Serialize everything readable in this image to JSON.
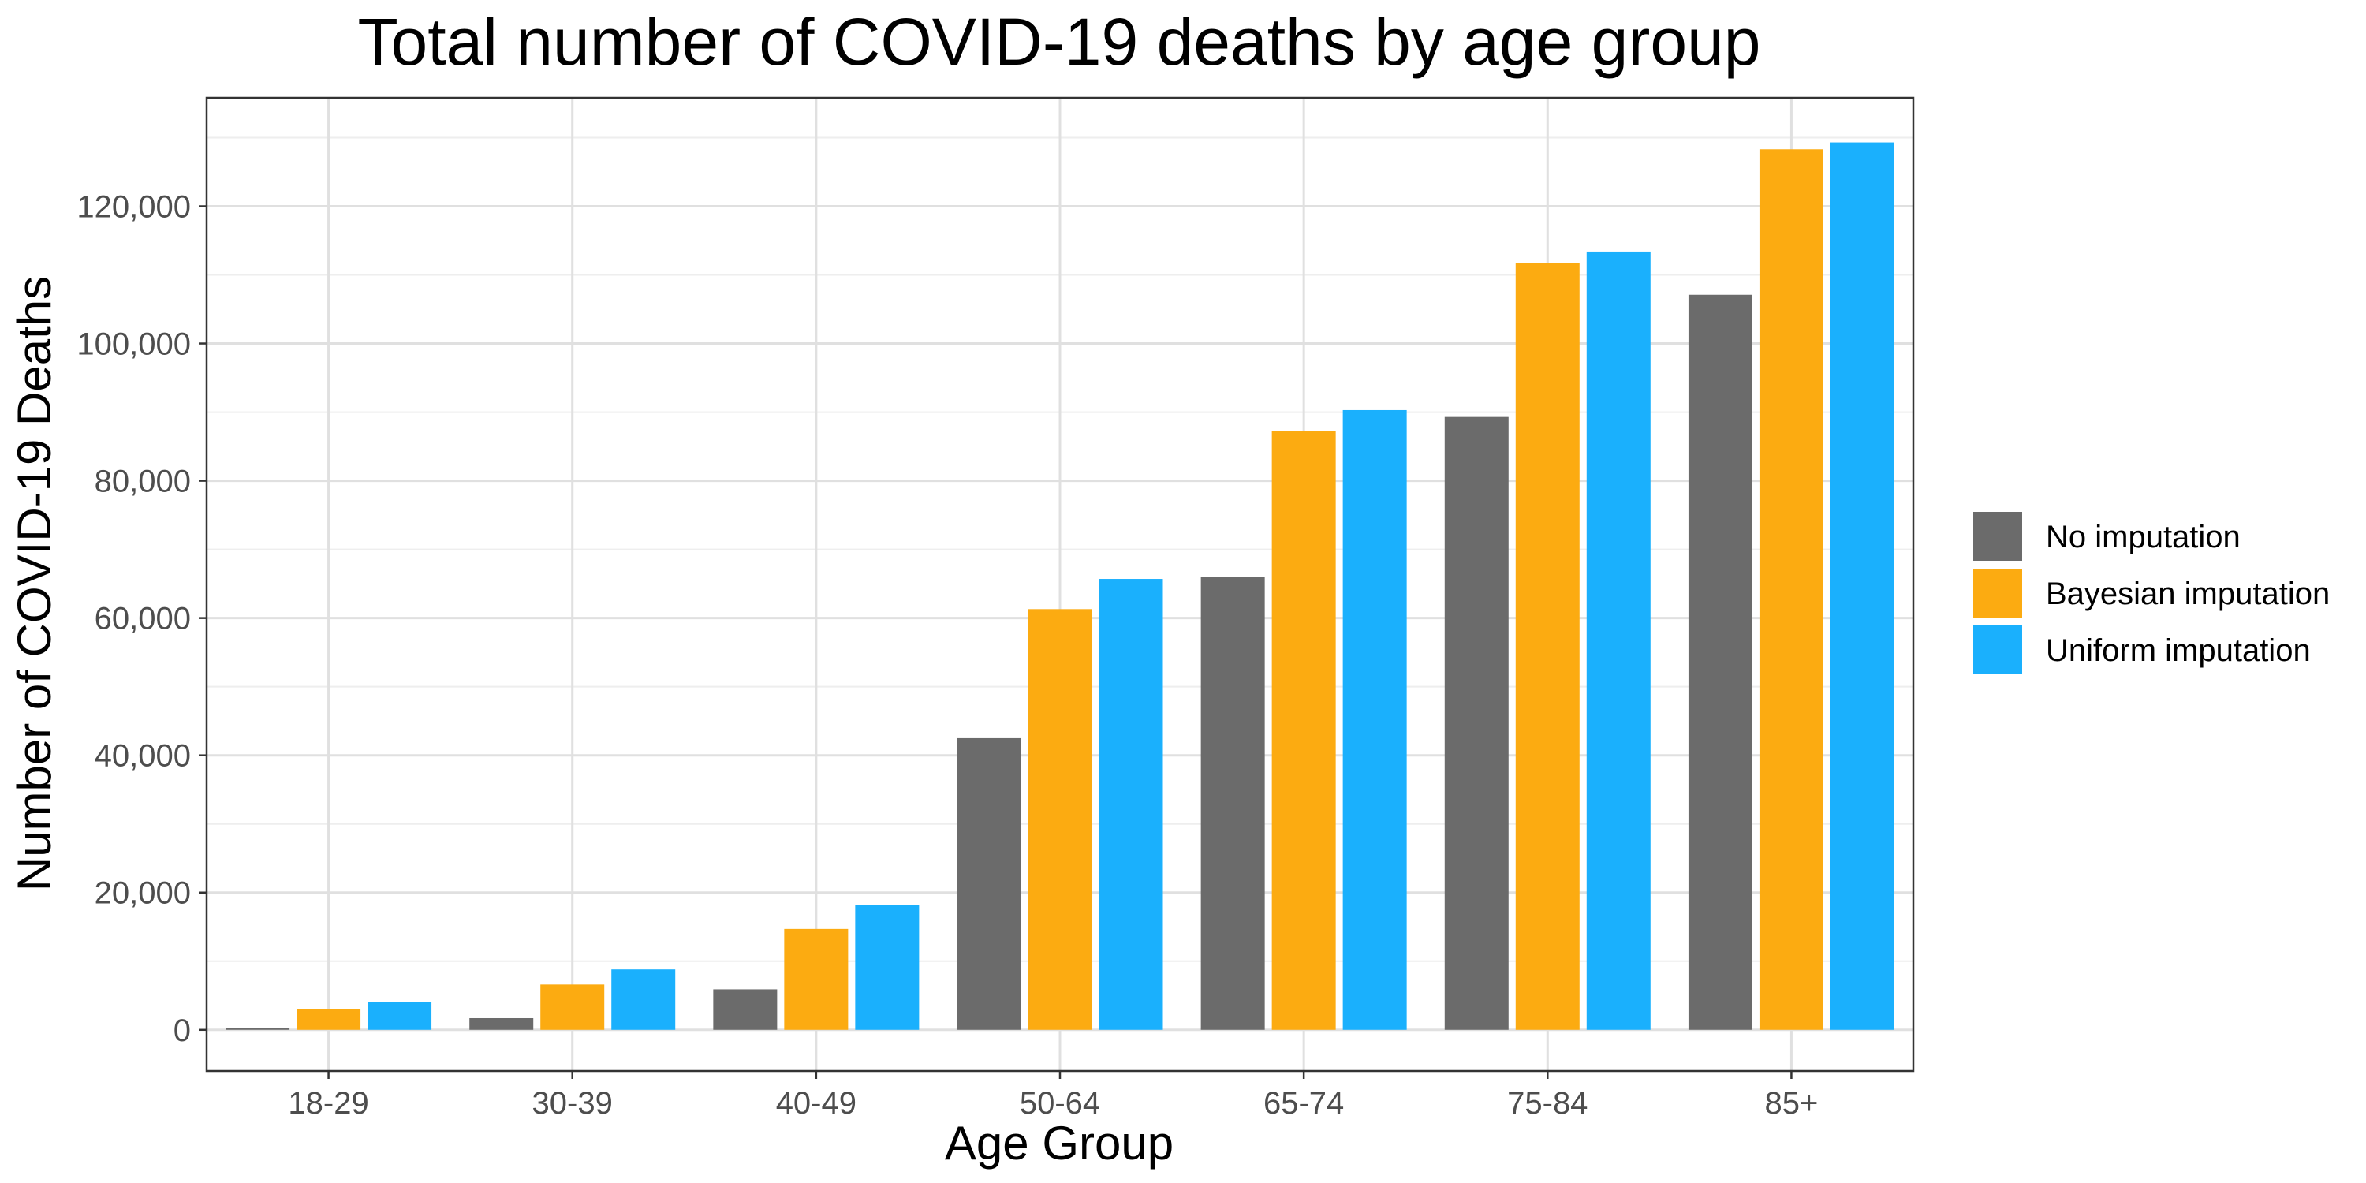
{
  "chart_data": {
    "type": "bar",
    "title": "Total number of COVID-19 deaths by age group",
    "xlabel": "Age Group",
    "ylabel": "Number of COVID-19 Deaths",
    "categories": [
      "18-29",
      "30-39",
      "40-49",
      "50-64",
      "65-74",
      "75-84",
      "85+"
    ],
    "series": [
      {
        "name": "No imputation",
        "color": "#6b6b6b",
        "values": [
          300,
          1700,
          5900,
          42500,
          66000,
          89300,
          107100
        ]
      },
      {
        "name": "Bayesian imputation",
        "color": "#fcab11",
        "values": [
          3000,
          6600,
          14700,
          61300,
          87300,
          111700,
          128300
        ]
      },
      {
        "name": "Uniform imputation",
        "color": "#1ab0fd",
        "values": [
          4000,
          8800,
          18200,
          65700,
          90300,
          113400,
          129300
        ]
      }
    ],
    "ylim": [
      -6000,
      135800
    ],
    "yticks": [
      0,
      20000,
      40000,
      60000,
      80000,
      100000,
      120000
    ],
    "ytick_labels": [
      "0",
      "20,000",
      "40,000",
      "60,000",
      "80,000",
      "100,000",
      "120,000"
    ],
    "grid": true,
    "legend_position": "right"
  }
}
